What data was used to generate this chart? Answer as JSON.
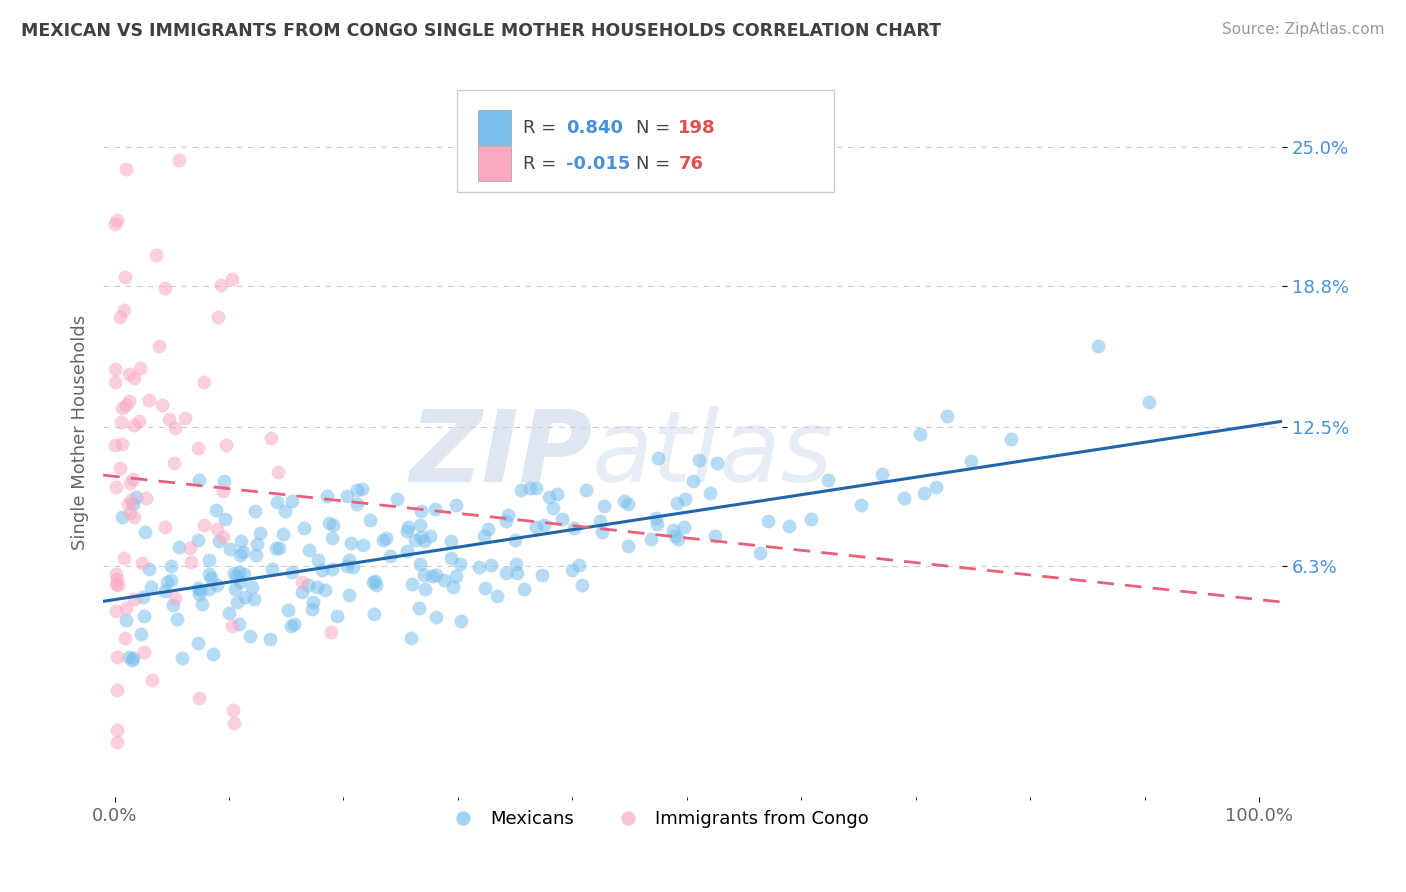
{
  "title": "MEXICAN VS IMMIGRANTS FROM CONGO SINGLE MOTHER HOUSEHOLDS CORRELATION CHART",
  "source": "Source: ZipAtlas.com",
  "ylabel": "Single Mother Households",
  "watermark_zip": "ZIP",
  "watermark_atlas": "atlas",
  "xlim": [
    -0.01,
    1.02
  ],
  "ylim": [
    -0.04,
    0.285
  ],
  "yticks": [
    0.063,
    0.125,
    0.188,
    0.25
  ],
  "ytick_labels": [
    "6.3%",
    "12.5%",
    "18.8%",
    "25.0%"
  ],
  "xtick_left": "0.0%",
  "xtick_right": "100.0%",
  "legend_R1": "0.840",
  "legend_N1": "198",
  "legend_R2": "-0.015",
  "legend_N2": "76",
  "blue_scatter_color": "#7abfec",
  "pink_scatter_color": "#f9a8c0",
  "blue_line_color": "#2166ac",
  "pink_line_color": "#e8607a",
  "title_color": "#404040",
  "grid_color": "#cccccc",
  "background_color": "#ffffff",
  "mexicans_label": "Mexicans",
  "congo_label": "Immigrants from Congo",
  "blue_intercept": 0.048,
  "blue_slope": 0.078,
  "pink_intercept": 0.103,
  "pink_slope": -0.055,
  "seed": 42
}
